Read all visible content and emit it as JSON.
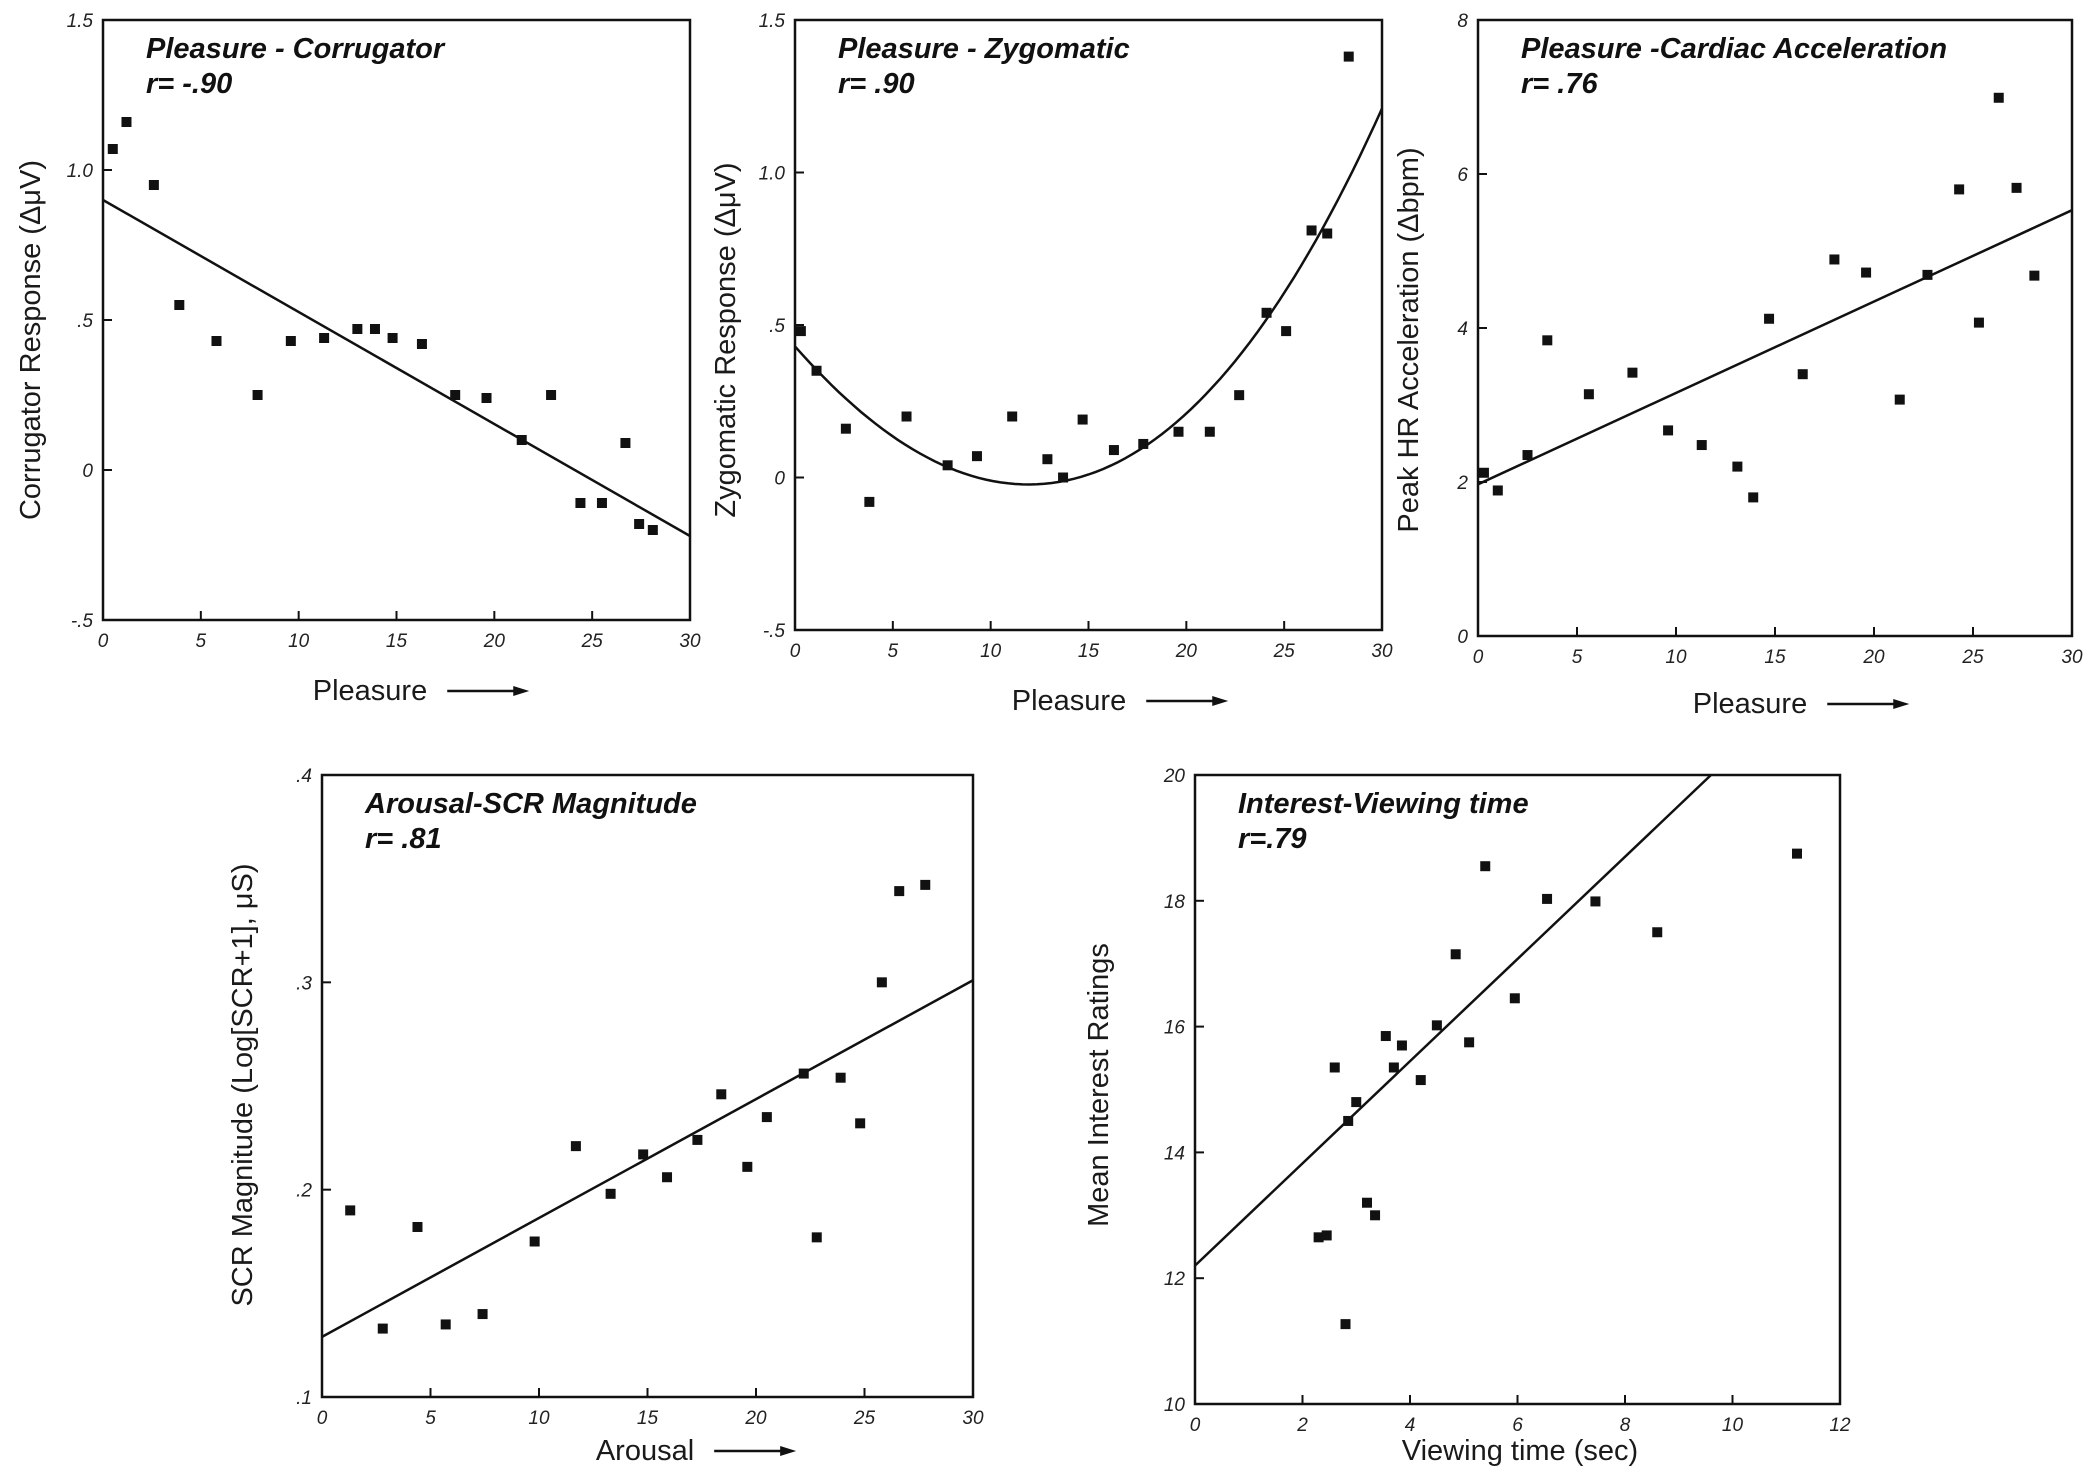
{
  "colors": {
    "ink": "#111111",
    "background": "#ffffff"
  },
  "chart_data": [
    {
      "type": "scatter",
      "title": "Pleasure - Corrugator",
      "subtitle": "r= -.90",
      "xlabel": "Pleasure",
      "ylabel": "Corrugator Response (ΔμV)",
      "xlim": [
        0,
        30
      ],
      "ylim": [
        -0.5,
        1.5
      ],
      "xticks": [
        0,
        5,
        10,
        15,
        20,
        25,
        30
      ],
      "xtick_labels": [
        "0",
        "5",
        "10",
        "15",
        "20",
        "25",
        "30"
      ],
      "yticks": [
        -0.5,
        0,
        0.5,
        1.0,
        1.5
      ],
      "ytick_labels": [
        "-.5",
        "0",
        ".5",
        "1.0",
        "1.5"
      ],
      "fit": {
        "kind": "linear",
        "points": [
          [
            0,
            0.9
          ],
          [
            30,
            -0.22
          ]
        ]
      },
      "points": [
        [
          0.5,
          1.07
        ],
        [
          1.2,
          1.16
        ],
        [
          2.6,
          0.95
        ],
        [
          3.9,
          0.55
        ],
        [
          5.8,
          0.43
        ],
        [
          7.9,
          0.25
        ],
        [
          9.6,
          0.43
        ],
        [
          11.3,
          0.44
        ],
        [
          13.0,
          0.47
        ],
        [
          13.9,
          0.47
        ],
        [
          14.8,
          0.44
        ],
        [
          16.3,
          0.42
        ],
        [
          18.0,
          0.25
        ],
        [
          19.6,
          0.24
        ],
        [
          21.4,
          0.1
        ],
        [
          22.9,
          0.25
        ],
        [
          24.4,
          -0.11
        ],
        [
          25.5,
          -0.11
        ],
        [
          26.7,
          0.09
        ],
        [
          27.4,
          -0.18
        ],
        [
          28.1,
          -0.2
        ]
      ]
    },
    {
      "type": "scatter",
      "title": "Pleasure - Zygomatic",
      "subtitle": "r= .90",
      "xlabel": "Pleasure",
      "ylabel": "Zygomatic Response (ΔμV)",
      "xlim": [
        0,
        30
      ],
      "ylim": [
        -0.5,
        1.5
      ],
      "xticks": [
        0,
        5,
        10,
        15,
        20,
        25,
        30
      ],
      "xtick_labels": [
        "0",
        "5",
        "10",
        "15",
        "20",
        "25",
        "30"
      ],
      "yticks": [
        -0.5,
        0,
        0.5,
        1.0,
        1.5
      ],
      "ytick_labels": [
        "-.5",
        "0",
        ".5",
        "1.0",
        "1.5"
      ],
      "fit": {
        "kind": "quadratic",
        "points": [
          [
            0,
            0.43
          ],
          [
            11,
            -0.02
          ],
          [
            20,
            0.21
          ],
          [
            30,
            1.21
          ]
        ]
      },
      "points": [
        [
          0.3,
          0.48
        ],
        [
          1.1,
          0.35
        ],
        [
          2.6,
          0.16
        ],
        [
          3.8,
          -0.08
        ],
        [
          5.7,
          0.2
        ],
        [
          7.8,
          0.04
        ],
        [
          9.3,
          0.07
        ],
        [
          11.1,
          0.2
        ],
        [
          12.9,
          0.06
        ],
        [
          13.7,
          0.0
        ],
        [
          14.7,
          0.19
        ],
        [
          16.3,
          0.09
        ],
        [
          17.8,
          0.11
        ],
        [
          19.6,
          0.15
        ],
        [
          21.2,
          0.15
        ],
        [
          22.7,
          0.27
        ],
        [
          24.1,
          0.54
        ],
        [
          25.1,
          0.48
        ],
        [
          26.4,
          0.81
        ],
        [
          27.2,
          0.8
        ],
        [
          28.3,
          1.38
        ]
      ]
    },
    {
      "type": "scatter",
      "title": "Pleasure -Cardiac Acceleration",
      "subtitle": "r= .76",
      "xlabel": "Pleasure",
      "ylabel": "Peak HR Acceleration (Δbpm)",
      "xlim": [
        0,
        30
      ],
      "ylim": [
        0,
        8
      ],
      "xticks": [
        0,
        5,
        10,
        15,
        20,
        25,
        30
      ],
      "xtick_labels": [
        "0",
        "5",
        "10",
        "15",
        "20",
        "25",
        "30"
      ],
      "yticks": [
        0,
        2,
        4,
        6,
        8
      ],
      "ytick_labels": [
        "0",
        "2",
        "4",
        "6",
        "8"
      ],
      "fit": {
        "kind": "linear",
        "points": [
          [
            0,
            1.97
          ],
          [
            30,
            5.53
          ]
        ]
      },
      "points": [
        [
          0.3,
          2.12
        ],
        [
          1.0,
          1.89
        ],
        [
          2.5,
          2.35
        ],
        [
          3.5,
          3.84
        ],
        [
          5.6,
          3.14
        ],
        [
          7.8,
          3.42
        ],
        [
          9.6,
          2.67
        ],
        [
          11.3,
          2.48
        ],
        [
          13.1,
          2.2
        ],
        [
          13.9,
          1.8
        ],
        [
          14.7,
          4.12
        ],
        [
          16.4,
          3.4
        ],
        [
          18.0,
          4.89
        ],
        [
          19.6,
          4.72
        ],
        [
          21.3,
          3.07
        ],
        [
          22.7,
          4.69
        ],
        [
          24.3,
          5.8
        ],
        [
          25.3,
          4.07
        ],
        [
          26.3,
          6.99
        ],
        [
          27.2,
          5.82
        ],
        [
          28.1,
          4.68
        ]
      ]
    },
    {
      "type": "scatter",
      "title": "Arousal-SCR Magnitude",
      "subtitle": "r= .81",
      "xlabel": "Arousal",
      "ylabel": "SCR Magnitude (Log[SCR+1], μS)",
      "xlim": [
        0,
        30
      ],
      "ylim": [
        0.1,
        0.4
      ],
      "xticks": [
        0,
        5,
        10,
        15,
        20,
        25,
        30
      ],
      "xtick_labels": [
        "0",
        "5",
        "10",
        "15",
        "20",
        "25",
        "30"
      ],
      "yticks": [
        0.1,
        0.2,
        0.3,
        0.4
      ],
      "ytick_labels": [
        ".1",
        ".2",
        ".3",
        ".4"
      ],
      "fit": {
        "kind": "linear",
        "points": [
          [
            0,
            0.129
          ],
          [
            30,
            0.301
          ]
        ]
      },
      "points": [
        [
          1.3,
          0.19
        ],
        [
          2.8,
          0.133
        ],
        [
          4.4,
          0.182
        ],
        [
          5.7,
          0.135
        ],
        [
          7.4,
          0.14
        ],
        [
          9.8,
          0.175
        ],
        [
          11.7,
          0.221
        ],
        [
          13.3,
          0.198
        ],
        [
          14.8,
          0.217
        ],
        [
          15.9,
          0.206
        ],
        [
          17.3,
          0.224
        ],
        [
          18.4,
          0.246
        ],
        [
          19.6,
          0.211
        ],
        [
          20.5,
          0.235
        ],
        [
          22.2,
          0.256
        ],
        [
          22.8,
          0.177
        ],
        [
          23.9,
          0.254
        ],
        [
          24.8,
          0.232
        ],
        [
          25.8,
          0.3
        ],
        [
          26.6,
          0.344
        ],
        [
          27.8,
          0.347
        ]
      ]
    },
    {
      "type": "scatter",
      "title": "Interest-Viewing time",
      "subtitle": "r=.79",
      "xlabel": "Viewing time (sec)",
      "ylabel": "Mean Interest Ratings",
      "xlim": [
        0,
        12
      ],
      "ylim": [
        10,
        20
      ],
      "xticks": [
        0,
        2,
        4,
        6,
        8,
        10,
        12
      ],
      "xtick_labels": [
        "0",
        "2",
        "4",
        "6",
        "8",
        "10",
        "12"
      ],
      "yticks": [
        10,
        12,
        14,
        16,
        18,
        20
      ],
      "ytick_labels": [
        "10",
        "12",
        "14",
        "16",
        "18",
        "20"
      ],
      "fit": {
        "kind": "linear",
        "points": [
          [
            0,
            12.2
          ],
          [
            9.6,
            20
          ]
        ]
      },
      "points": [
        [
          2.3,
          12.65
        ],
        [
          2.45,
          12.68
        ],
        [
          2.6,
          15.35
        ],
        [
          2.8,
          11.27
        ],
        [
          2.85,
          14.5
        ],
        [
          3.0,
          14.8
        ],
        [
          3.2,
          13.2
        ],
        [
          3.35,
          13.0
        ],
        [
          3.55,
          15.85
        ],
        [
          3.7,
          15.35
        ],
        [
          3.85,
          15.7
        ],
        [
          4.2,
          15.15
        ],
        [
          4.5,
          16.02
        ],
        [
          4.85,
          17.15
        ],
        [
          5.1,
          15.75
        ],
        [
          5.4,
          18.55
        ],
        [
          5.95,
          16.45
        ],
        [
          6.55,
          18.03
        ],
        [
          7.45,
          17.99
        ],
        [
          8.6,
          17.5
        ],
        [
          11.2,
          18.75
        ]
      ]
    }
  ]
}
